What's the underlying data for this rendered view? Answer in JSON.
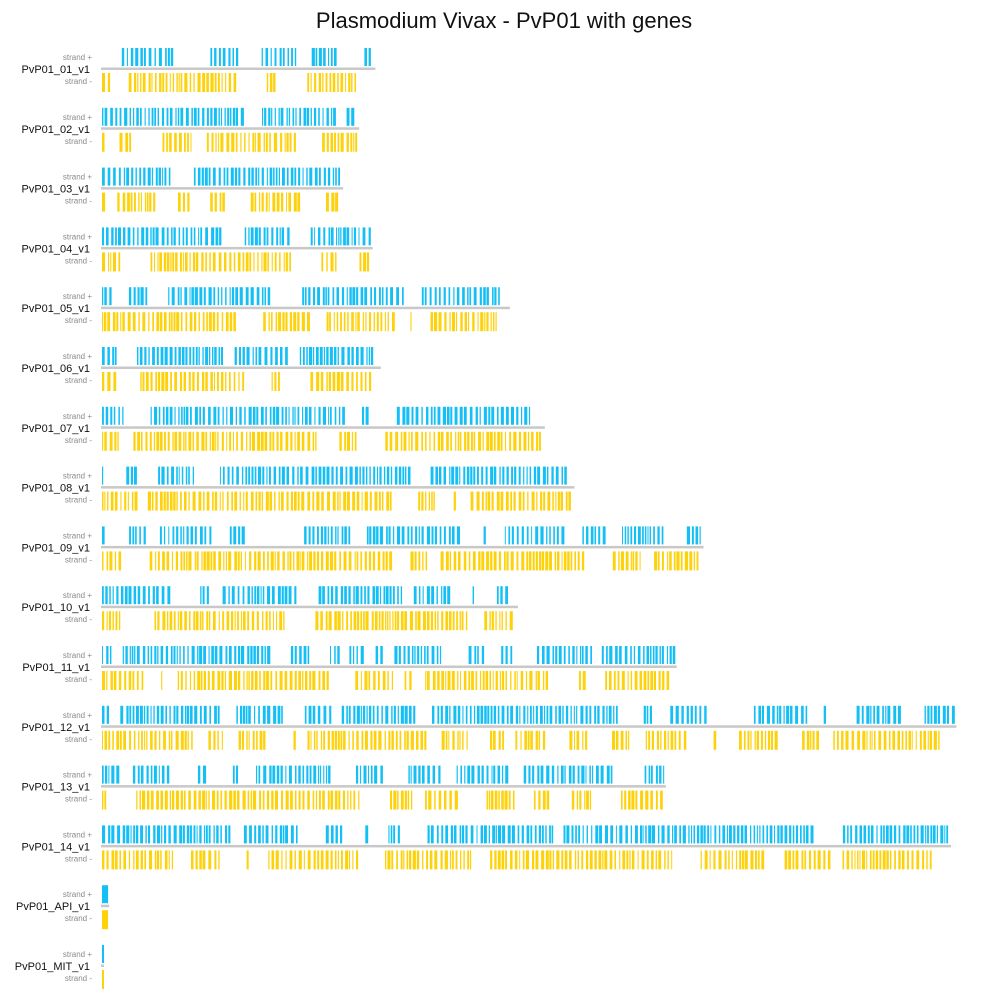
{
  "chart_data": {
    "type": "genome-karyotype",
    "title": "Plasmodium Vivax - PvP01 with genes",
    "strand_labels": {
      "plus": "strand +",
      "minus": "strand -"
    },
    "colors": {
      "plus": "#14bff5",
      "minus": "#fdd20a",
      "axis": "#c8c8c8"
    },
    "chromosomes": [
      {
        "name": "PvP01_01_v1",
        "length_mb": 1.02
      },
      {
        "name": "PvP01_02_v1",
        "length_mb": 0.96
      },
      {
        "name": "PvP01_03_v1",
        "length_mb": 0.9
      },
      {
        "name": "PvP01_04_v1",
        "length_mb": 1.01
      },
      {
        "name": "PvP01_05_v1",
        "length_mb": 1.52
      },
      {
        "name": "PvP01_06_v1",
        "length_mb": 1.04
      },
      {
        "name": "PvP01_07_v1",
        "length_mb": 1.65
      },
      {
        "name": "PvP01_08_v1",
        "length_mb": 1.76
      },
      {
        "name": "PvP01_09_v1",
        "length_mb": 2.24
      },
      {
        "name": "PvP01_10_v1",
        "length_mb": 1.55
      },
      {
        "name": "PvP01_11_v1",
        "length_mb": 2.14
      },
      {
        "name": "PvP01_12_v1",
        "length_mb": 3.18
      },
      {
        "name": "PvP01_13_v1",
        "length_mb": 2.1
      },
      {
        "name": "PvP01_14_v1",
        "length_mb": 3.16
      },
      {
        "name": "PvP01_API_v1",
        "length_mb": 0.03
      },
      {
        "name": "PvP01_MIT_v1",
        "length_mb": 0.006
      }
    ]
  }
}
